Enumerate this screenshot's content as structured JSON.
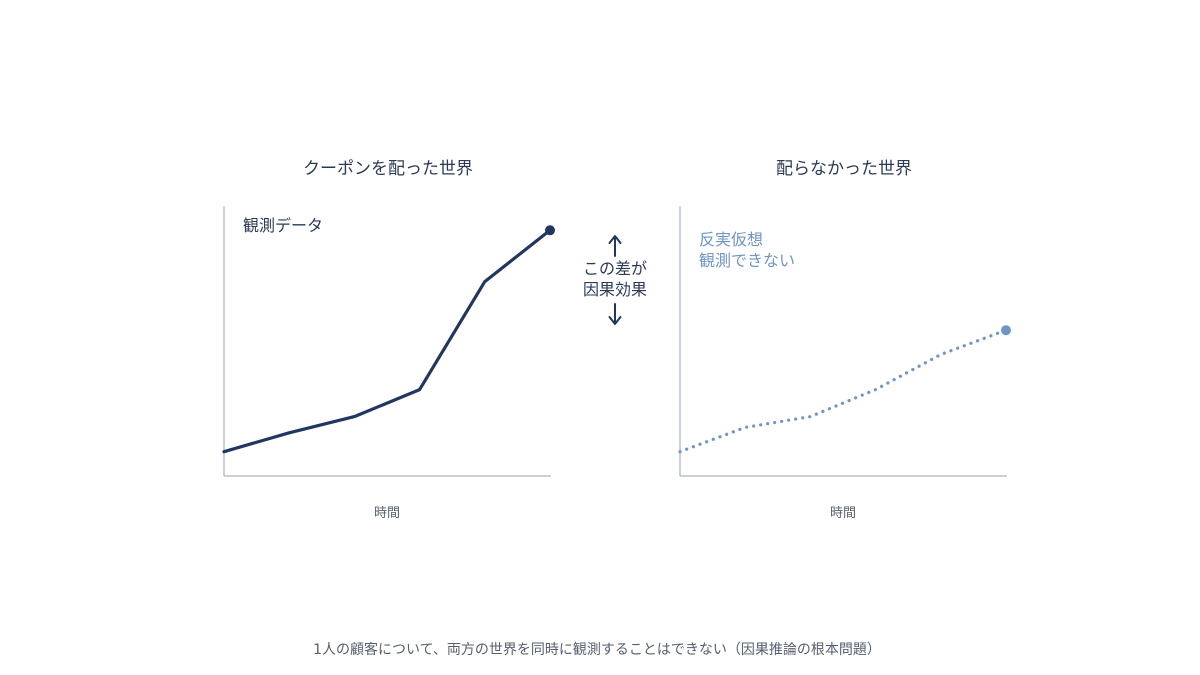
{
  "colors": {
    "observed_line": "#22375f",
    "counterfactual_line": "#6f95c8",
    "axis": "#b8c0cc",
    "arrow": "#22375f"
  },
  "left_panel": {
    "title": "クーポンを配った世界",
    "annotation": "観測データ",
    "x_label": "時間",
    "chart_data": {
      "type": "line",
      "style": "solid",
      "x": [
        0,
        1,
        2,
        3,
        4,
        5
      ],
      "y": [
        0.09,
        0.16,
        0.22,
        0.32,
        0.72,
        0.91
      ],
      "end_marker": true
    }
  },
  "right_panel": {
    "title": "配らなかった世界",
    "annotation_line1": "反実仮想",
    "annotation_line2": "観測できない",
    "x_label": "時間",
    "chart_data": {
      "type": "line",
      "style": "dotted",
      "x": [
        0,
        1,
        2,
        3,
        4,
        5
      ],
      "y": [
        0.09,
        0.18,
        0.22,
        0.32,
        0.45,
        0.54
      ],
      "end_marker": true
    }
  },
  "center": {
    "line1": "この差が",
    "line2": "因果効果",
    "arrow_up_icon": "arrow-up-icon",
    "arrow_down_icon": "arrow-down-icon"
  },
  "caption": "1人の顧客について、両方の世界を同時に観測することはできない（因果推論の根本問題）"
}
